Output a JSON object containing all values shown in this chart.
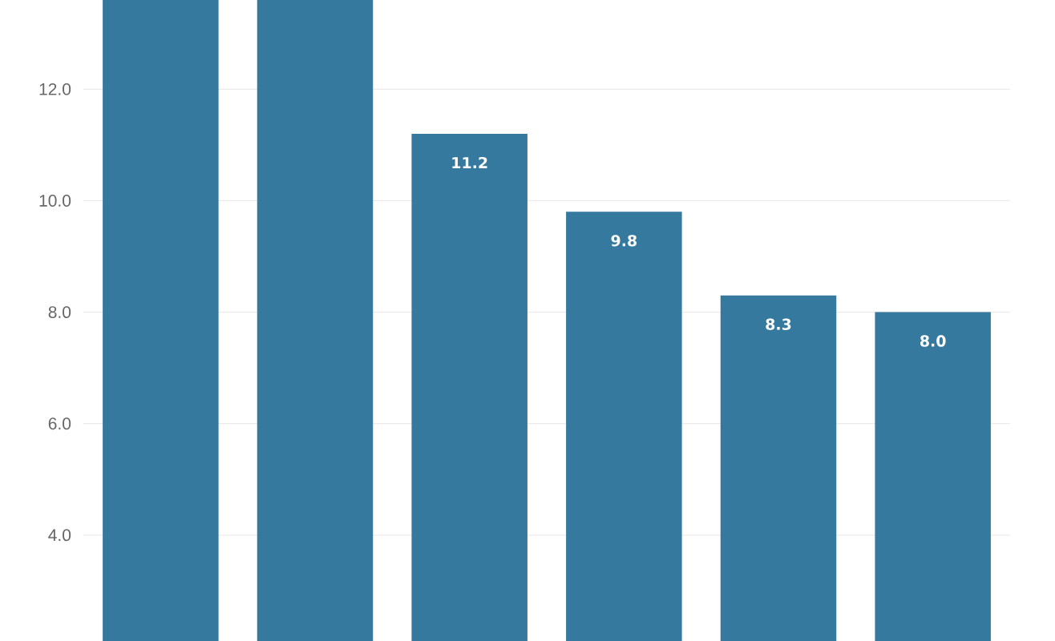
{
  "chart_data": {
    "type": "bar",
    "categories": [
      null,
      null,
      null,
      null,
      null,
      null
    ],
    "values": [
      13.6,
      13.6,
      11.2,
      9.8,
      8.3,
      8.0
    ],
    "color": "#36799f",
    "ylim": [
      2.1,
      13.6
    ],
    "yticks": [
      {
        "value": 4,
        "label": "4.0"
      },
      {
        "value": 6,
        "label": "6.0"
      },
      {
        "value": 8,
        "label": "8.0"
      },
      {
        "value": 10,
        "label": "10.0"
      },
      {
        "value": 12,
        "label": "12.0"
      }
    ],
    "grid": "y",
    "tick_labels": "y",
    "value_labels": [
      null,
      null,
      "11.2",
      "9.8",
      "8.3",
      "8.0"
    ]
  }
}
